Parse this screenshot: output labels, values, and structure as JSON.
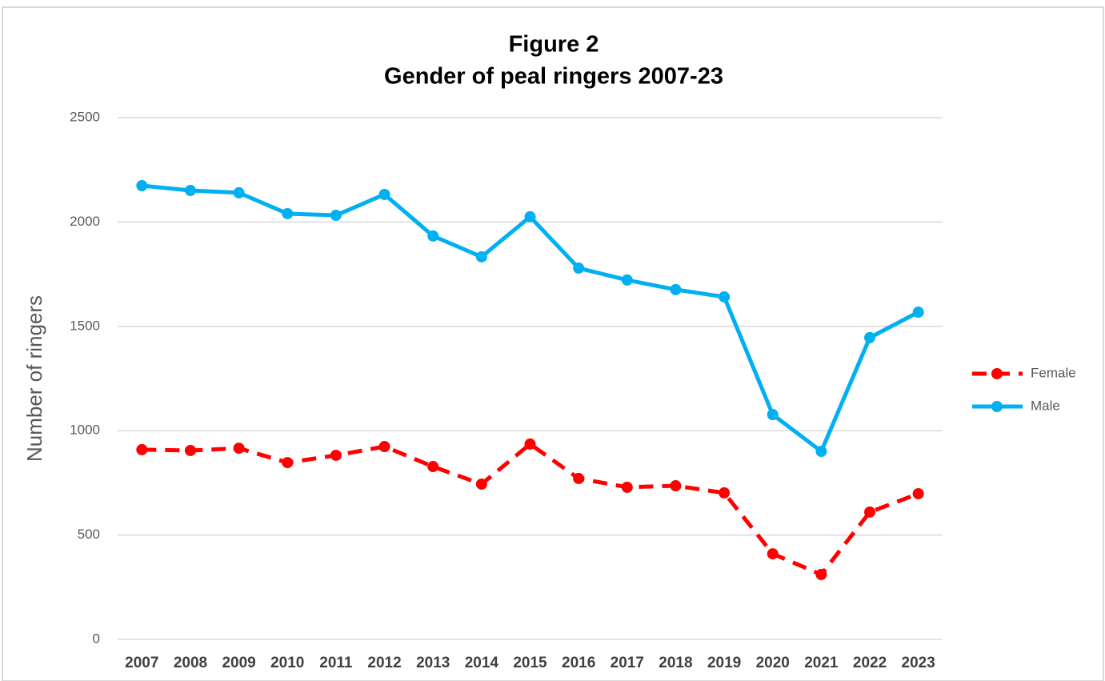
{
  "chart_data": {
    "type": "line",
    "title": "Figure 2",
    "subtitle": "Gender of peal ringers 2007-23",
    "y_label": "Number of ringers",
    "categories": [
      "2007",
      "2008",
      "2009",
      "2010",
      "2011",
      "2012",
      "2013",
      "2014",
      "2015",
      "2016",
      "2017",
      "2018",
      "2019",
      "2020",
      "2021",
      "2022",
      "2023"
    ],
    "series": [
      {
        "name": "Female",
        "color": "#ff0000",
        "dashed": true,
        "values": [
          909,
          905,
          916,
          847,
          882,
          924,
          828,
          744,
          936,
          771,
          729,
          736,
          702,
          410,
          311,
          610,
          698
        ]
      },
      {
        "name": "Male",
        "color": "#00b0f0",
        "dashed": false,
        "values": [
          2174,
          2151,
          2140,
          2040,
          2032,
          2132,
          1933,
          1833,
          2025,
          1779,
          1722,
          1676,
          1641,
          1077,
          901,
          1446,
          1568
        ]
      }
    ],
    "ylim": [
      0,
      2500
    ],
    "yticks": [
      0,
      500,
      1000,
      1500,
      2000,
      2500
    ],
    "grid": true,
    "legend": "right"
  }
}
